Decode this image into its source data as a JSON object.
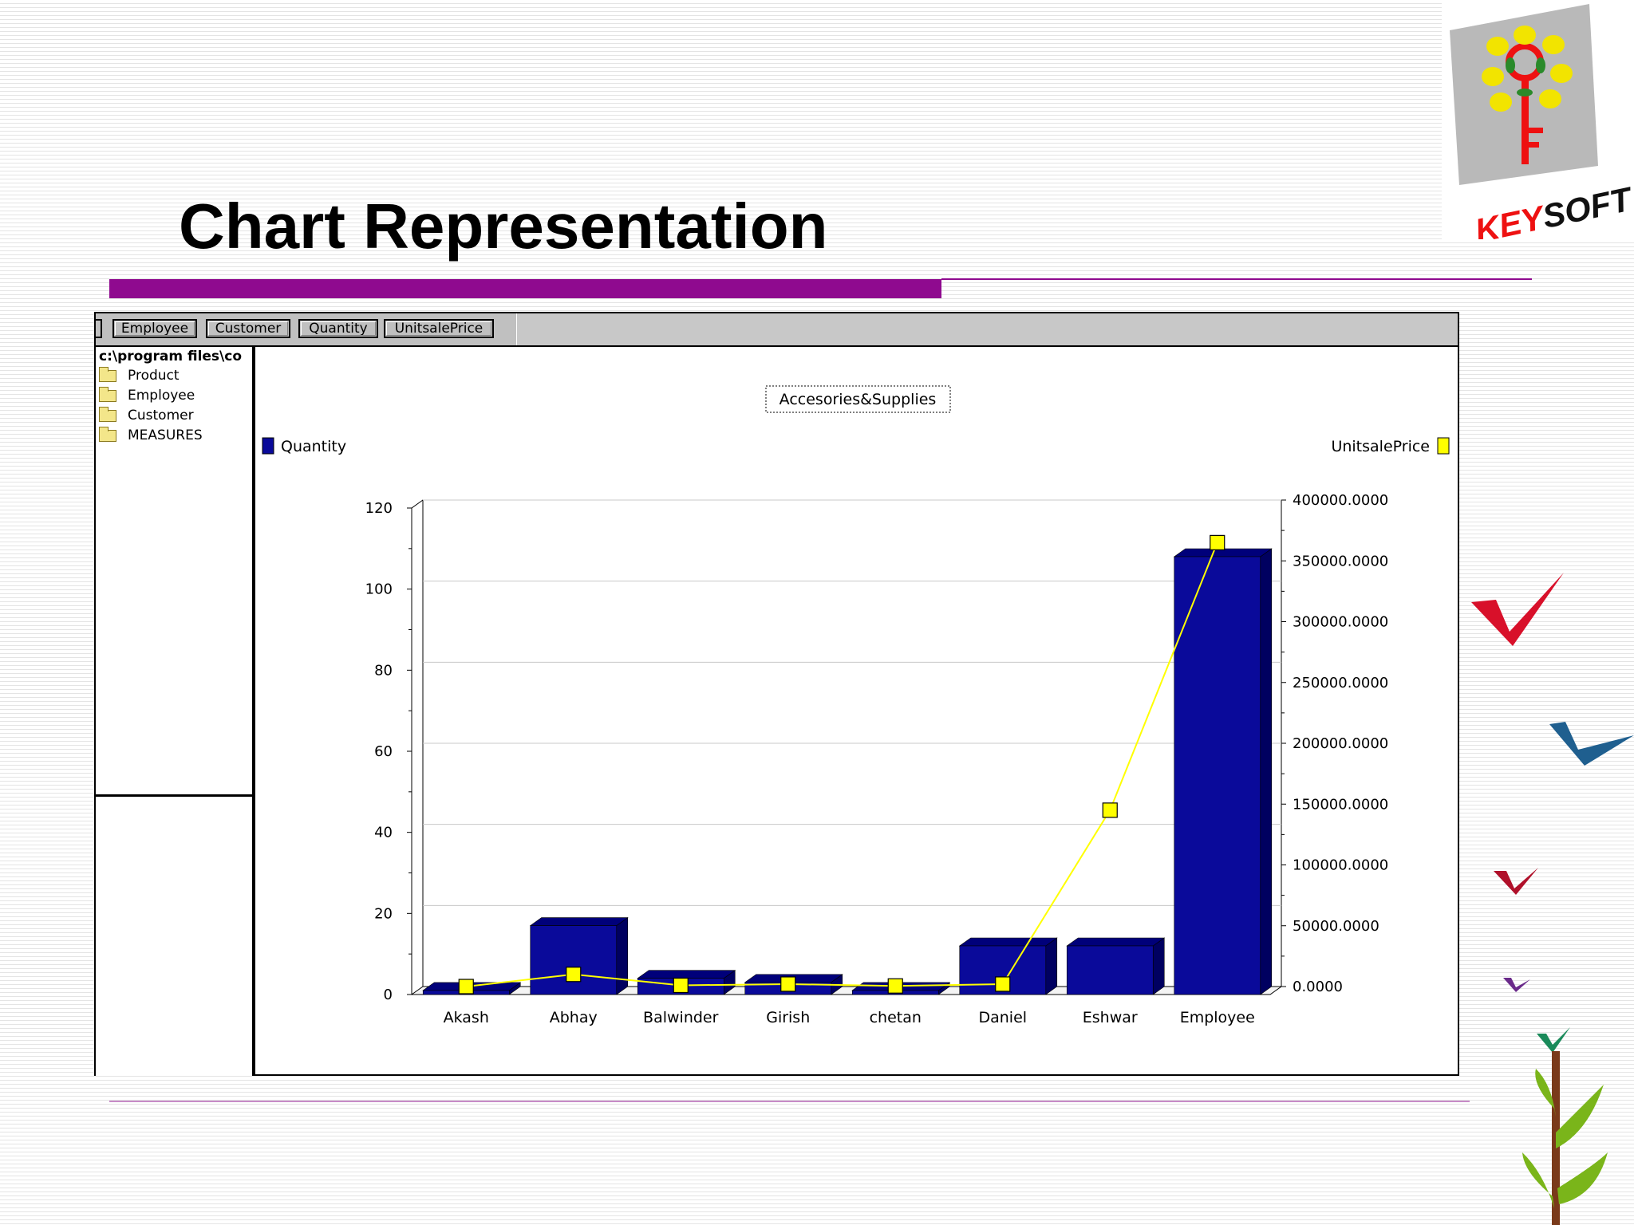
{
  "slide": {
    "title": "Chart Representation"
  },
  "logo": {
    "text": "KEYSOFT"
  },
  "app": {
    "tabs": [
      "Employee",
      "Customer",
      "Quantity",
      "UnitsalePrice"
    ],
    "tree": {
      "path": "c:\\program files\\co",
      "items": [
        "Product",
        "Employee",
        "Customer",
        "MEASURES"
      ]
    }
  },
  "colors": {
    "accent": "#8f0a8f",
    "quantity_series": "#0a0a9a",
    "unitsaleprice_series": "#ffff00"
  },
  "chart_data": {
    "type": "bar",
    "title": "Accesories&Supplies",
    "categories": [
      "Akash",
      "Abhay",
      "Balwinder",
      "Girish",
      "chetan",
      "Daniel",
      "Eshwar",
      "Employee"
    ],
    "series": [
      {
        "name": "Quantity",
        "axis": "left",
        "type": "bar",
        "values": [
          1,
          17,
          4,
          3,
          1,
          12,
          12,
          108
        ]
      },
      {
        "name": "UnitsalePrice",
        "axis": "right",
        "type": "line",
        "values": [
          0,
          10000,
          1000,
          2000,
          500,
          2000,
          145000,
          365000
        ]
      }
    ],
    "y_left": {
      "ylim": [
        0,
        120
      ],
      "ticks": [
        "0",
        "20",
        "40",
        "60",
        "80",
        "100",
        "120"
      ]
    },
    "y_right": {
      "ylim": [
        0,
        400000
      ],
      "ticks": [
        "0.0000",
        "50000.0000",
        "100000.0000",
        "150000.0000",
        "200000.0000",
        "250000.0000",
        "300000.0000",
        "350000.0000",
        "400000.0000"
      ]
    },
    "grid": true,
    "legend": "top"
  }
}
